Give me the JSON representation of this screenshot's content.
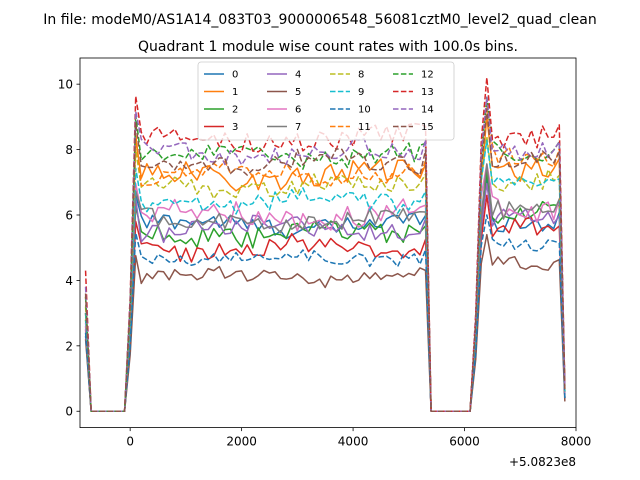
{
  "suptitle": "In file: modeM0/AS1A14_083T03_9000006548_56081cztM0_level2_quad_clean",
  "chart_data": {
    "type": "line",
    "title": "Quadrant 1 module wise count rates with 100.0s bins.",
    "xlabel": "",
    "ylabel": "",
    "x_offset_label": "+5.0823e8",
    "xlim": [
      -900,
      8000
    ],
    "ylim": [
      -0.5,
      10.8
    ],
    "xticks": [
      0,
      2000,
      4000,
      6000,
      8000
    ],
    "xtick_labels": [
      "0",
      "2000",
      "4000",
      "6000",
      "8000"
    ],
    "yticks": [
      0,
      2,
      4,
      6,
      8,
      10
    ],
    "ytick_labels": [
      "0",
      "2",
      "4",
      "6",
      "8",
      "10"
    ],
    "grid": false,
    "legend_location": "upper center",
    "segments": [
      {
        "note": "pre-gap",
        "x_start": -800,
        "step": 100,
        "count": 3
      },
      {
        "note": "observation 1",
        "x_start": -500,
        "step": 100,
        "count": 59
      },
      {
        "note": "gap",
        "x_start": 5400,
        "step": 100,
        "count": 9
      },
      {
        "note": "observation 2",
        "x_start": 6200,
        "step": 100,
        "count": 17
      }
    ],
    "series": [
      {
        "name": "0",
        "color": "#1f77b4",
        "dash": "solid",
        "start_value": 2.3,
        "level1": 5.7,
        "level2": 5.9,
        "noise": 0.3,
        "end_value": 0.4
      },
      {
        "name": "1",
        "color": "#ff7f0e",
        "dash": "solid",
        "start_value": 3.0,
        "level1": 7.2,
        "level2": 7.5,
        "noise": 0.35,
        "end_value": 0.5
      },
      {
        "name": "2",
        "color": "#2ca02c",
        "dash": "solid",
        "start_value": 2.8,
        "level1": 5.4,
        "level2": 6.1,
        "noise": 0.35,
        "end_value": 0.4
      },
      {
        "name": "3",
        "color": "#d62728",
        "dash": "solid",
        "start_value": 2.5,
        "level1": 5.0,
        "level2": 5.5,
        "noise": 0.3,
        "end_value": 0.4
      },
      {
        "name": "4",
        "color": "#9467bd",
        "dash": "solid",
        "start_value": 2.6,
        "level1": 5.6,
        "level2": 5.8,
        "noise": 0.3,
        "end_value": 0.4
      },
      {
        "name": "5",
        "color": "#8c564b",
        "dash": "solid",
        "start_value": 2.2,
        "level1": 4.1,
        "level2": 4.5,
        "noise": 0.25,
        "end_value": 0.3
      },
      {
        "name": "6",
        "color": "#e377c2",
        "dash": "solid",
        "start_value": 2.7,
        "level1": 6.0,
        "level2": 6.3,
        "noise": 0.35,
        "end_value": 0.5
      },
      {
        "name": "7",
        "color": "#7f7f7f",
        "dash": "solid",
        "start_value": 3.0,
        "level1": 5.8,
        "level2": 6.3,
        "noise": 0.3,
        "end_value": 0.6
      },
      {
        "name": "8",
        "color": "#bcbd22",
        "dash": "dashed",
        "start_value": 3.2,
        "level1": 6.9,
        "level2": 7.0,
        "noise": 0.3,
        "end_value": 0.6
      },
      {
        "name": "9",
        "color": "#17becf",
        "dash": "dashed",
        "start_value": 3.0,
        "level1": 6.4,
        "level2": 6.9,
        "noise": 0.3,
        "end_value": 0.6
      },
      {
        "name": "10",
        "color": "#1f77b4",
        "dash": "dashed",
        "start_value": 2.4,
        "level1": 4.7,
        "level2": 5.0,
        "noise": 0.2,
        "end_value": 0.4
      },
      {
        "name": "11",
        "color": "#ff7f0e",
        "dash": "dashed",
        "start_value": 3.5,
        "level1": 7.3,
        "level2": 7.8,
        "noise": 0.3,
        "end_value": 0.7
      },
      {
        "name": "12",
        "color": "#2ca02c",
        "dash": "dashed",
        "start_value": 3.5,
        "level1": 7.8,
        "level2": 8.0,
        "noise": 0.3,
        "end_value": 0.7
      },
      {
        "name": "13",
        "color": "#d62728",
        "dash": "dashed",
        "start_value": 4.3,
        "level1": 8.3,
        "level2": 8.5,
        "noise": 0.35,
        "end_value": 0.8
      },
      {
        "name": "14",
        "color": "#9467bd",
        "dash": "dashed",
        "start_value": 3.8,
        "level1": 7.9,
        "level2": 8.0,
        "noise": 0.3,
        "end_value": 0.7
      },
      {
        "name": "15",
        "color": "#8c564b",
        "dash": "dashed",
        "start_value": 3.6,
        "level1": 7.6,
        "level2": 7.7,
        "noise": 0.3,
        "end_value": 0.6
      }
    ]
  }
}
